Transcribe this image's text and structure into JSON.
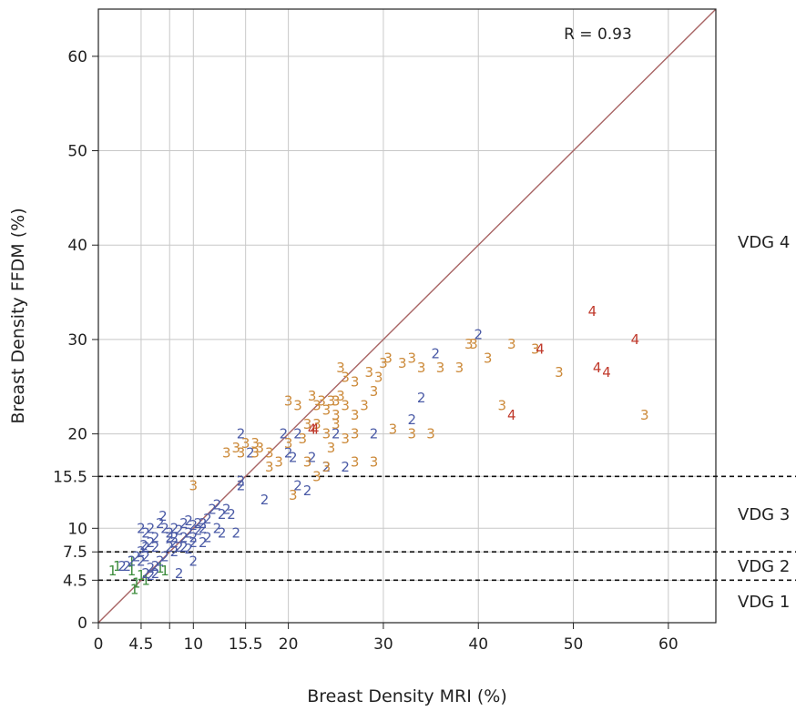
{
  "chart_data": {
    "type": "scatter",
    "title": "",
    "xlabel": "Breast Density MRI (%)",
    "ylabel": "Breast Density FFDM (%)",
    "xlim": [
      0,
      65
    ],
    "ylim": [
      0,
      65
    ],
    "x_ticks": [
      {
        "value": 0,
        "label": "0"
      },
      {
        "value": 4.5,
        "label": "4.5"
      },
      {
        "value": 7.5,
        "label": ""
      },
      {
        "value": 10,
        "label": "10"
      },
      {
        "value": 15.5,
        "label": "15.5"
      },
      {
        "value": 20,
        "label": "20"
      },
      {
        "value": 30,
        "label": "30"
      },
      {
        "value": 40,
        "label": "40"
      },
      {
        "value": 50,
        "label": "50"
      },
      {
        "value": 60,
        "label": "60"
      }
    ],
    "y_ticks": [
      {
        "value": 0,
        "label": "0"
      },
      {
        "value": 4.5,
        "label": "4.5"
      },
      {
        "value": 7.5,
        "label": "7.5"
      },
      {
        "value": 10,
        "label": "10"
      },
      {
        "value": 15.5,
        "label": "15.5"
      },
      {
        "value": 20,
        "label": "20"
      },
      {
        "value": 30,
        "label": "30"
      },
      {
        "value": 40,
        "label": "40"
      },
      {
        "value": 50,
        "label": "50"
      },
      {
        "value": 60,
        "label": "60"
      }
    ],
    "grid": true,
    "identity_line": true,
    "identity_line_color": "#a86464",
    "correlation_label": "R = 0.93",
    "thresholds": [
      {
        "value": 4.5
      },
      {
        "value": 7.5
      },
      {
        "value": 15.5
      }
    ],
    "vdg_labels": [
      {
        "label": "VDG 1",
        "y": 2.2
      },
      {
        "label": "VDG 2",
        "y": 6.0
      },
      {
        "label": "VDG 3",
        "y": 11.5
      },
      {
        "label": "VDG 4",
        "y": 40.3
      }
    ],
    "series": [
      {
        "marker": "1",
        "color": "#3c8c3c",
        "points": [
          [
            1.5,
            5.5
          ],
          [
            2,
            6
          ],
          [
            3.5,
            5.5
          ],
          [
            4,
            4.2
          ],
          [
            4.5,
            5
          ],
          [
            3.8,
            3.5
          ],
          [
            5,
            4.5
          ],
          [
            6.5,
            5.8
          ],
          [
            7,
            5.5
          ],
          [
            3.5,
            6.5
          ]
        ]
      },
      {
        "marker": "2",
        "color": "#4a5aa6",
        "points": [
          [
            2.5,
            6
          ],
          [
            3,
            6
          ],
          [
            3.5,
            6.5
          ],
          [
            4,
            7
          ],
          [
            4.5,
            7.5
          ],
          [
            5,
            8
          ],
          [
            5.5,
            8.5
          ],
          [
            6,
            9
          ],
          [
            5,
            9.5
          ],
          [
            4.5,
            10
          ],
          [
            5.5,
            10
          ],
          [
            6.5,
            10.5
          ],
          [
            6.8,
            11.3
          ],
          [
            7,
            10
          ],
          [
            7.5,
            9.5
          ],
          [
            8,
            9
          ],
          [
            8.5,
            9.8
          ],
          [
            9,
            10.5
          ],
          [
            9.5,
            10.8
          ],
          [
            10,
            10.3
          ],
          [
            10.5,
            9.8
          ],
          [
            11,
            10.5
          ],
          [
            11.5,
            11
          ],
          [
            12,
            12
          ],
          [
            12.5,
            12.5
          ],
          [
            13,
            11.5
          ],
          [
            13.5,
            12
          ],
          [
            14,
            11.5
          ],
          [
            14.5,
            9.5
          ],
          [
            13,
            9.5
          ],
          [
            11.5,
            9
          ],
          [
            10,
            8.5
          ],
          [
            9,
            8
          ],
          [
            8,
            7.5
          ],
          [
            7,
            7
          ],
          [
            6.5,
            6.5
          ],
          [
            6,
            6
          ],
          [
            5.5,
            5.8
          ],
          [
            5,
            5.2
          ],
          [
            5.5,
            5
          ],
          [
            6,
            5.2
          ],
          [
            8.5,
            5.2
          ],
          [
            10,
            6.5
          ],
          [
            11,
            8.5
          ],
          [
            12.5,
            10
          ],
          [
            7.5,
            8
          ],
          [
            8,
            8.5
          ],
          [
            8.5,
            8
          ],
          [
            9,
            9
          ],
          [
            9.5,
            9.5
          ],
          [
            10,
            9
          ],
          [
            10.5,
            10.5
          ],
          [
            8,
            10
          ],
          [
            7.5,
            9
          ],
          [
            6,
            8
          ],
          [
            5,
            7
          ],
          [
            4.5,
            6.5
          ],
          [
            4.8,
            8.2
          ],
          [
            9.5,
            7.8
          ],
          [
            11,
            10
          ],
          [
            15,
            14.5
          ],
          [
            15,
            15
          ],
          [
            16,
            18
          ],
          [
            17.5,
            13
          ],
          [
            19.5,
            20
          ],
          [
            20,
            18
          ],
          [
            20.5,
            17.5
          ],
          [
            21,
            20
          ],
          [
            22,
            14
          ],
          [
            21,
            14.5
          ],
          [
            22.5,
            17.5
          ],
          [
            24,
            16.5
          ],
          [
            25,
            20
          ],
          [
            26,
            16.5
          ],
          [
            29,
            20
          ],
          [
            33,
            21.5
          ],
          [
            34,
            23.8
          ],
          [
            35.5,
            28.5
          ],
          [
            40,
            30.5
          ],
          [
            15,
            20
          ]
        ]
      },
      {
        "marker": "3",
        "color": "#cc8a3a",
        "points": [
          [
            10,
            14.5
          ],
          [
            13.5,
            18
          ],
          [
            14.5,
            18.5
          ],
          [
            15,
            18
          ],
          [
            15.5,
            19
          ],
          [
            16.5,
            19
          ],
          [
            16.5,
            18
          ],
          [
            17,
            18.5
          ],
          [
            18,
            18
          ],
          [
            19,
            17
          ],
          [
            18,
            16.5
          ],
          [
            20,
            19
          ],
          [
            20.5,
            13.5
          ],
          [
            21.5,
            19.5
          ],
          [
            22,
            21
          ],
          [
            21,
            23
          ],
          [
            20,
            23.5
          ],
          [
            22.5,
            24
          ],
          [
            23,
            23
          ],
          [
            23.5,
            23.5
          ],
          [
            24,
            22.5
          ],
          [
            24.5,
            23.5
          ],
          [
            25,
            23.5
          ],
          [
            25.5,
            24
          ],
          [
            25,
            22
          ],
          [
            26,
            23
          ],
          [
            27,
            22
          ],
          [
            28,
            23
          ],
          [
            28.5,
            26.5
          ],
          [
            27,
            25.5
          ],
          [
            26,
            26
          ],
          [
            25.5,
            27
          ],
          [
            29,
            24.5
          ],
          [
            29.5,
            26
          ],
          [
            30,
            27.5
          ],
          [
            30.5,
            28
          ],
          [
            32,
            27.5
          ],
          [
            33,
            28
          ],
          [
            34,
            27
          ],
          [
            36,
            27
          ],
          [
            38,
            27
          ],
          [
            39,
            29.5
          ],
          [
            39.5,
            29.5
          ],
          [
            41,
            28
          ],
          [
            43.5,
            29.5
          ],
          [
            46,
            29
          ],
          [
            48.5,
            26.5
          ],
          [
            42.5,
            23
          ],
          [
            57.5,
            22
          ],
          [
            23,
            21
          ],
          [
            24,
            20
          ],
          [
            25,
            21
          ],
          [
            27,
            20
          ],
          [
            31,
            20.5
          ],
          [
            33,
            20
          ],
          [
            35,
            20
          ],
          [
            29,
            17
          ],
          [
            27,
            17
          ],
          [
            24,
            16.5
          ],
          [
            23,
            15.5
          ],
          [
            22,
            17
          ],
          [
            24.5,
            18.5
          ],
          [
            26,
            19.5
          ]
        ]
      },
      {
        "marker": "4",
        "color": "#c0392b",
        "points": [
          [
            22.5,
            20.5
          ],
          [
            22.8,
            20.5
          ],
          [
            43.5,
            22
          ],
          [
            46.5,
            29
          ],
          [
            52,
            33
          ],
          [
            52.5,
            27
          ],
          [
            53.5,
            26.5
          ],
          [
            56.5,
            30
          ]
        ]
      }
    ]
  }
}
